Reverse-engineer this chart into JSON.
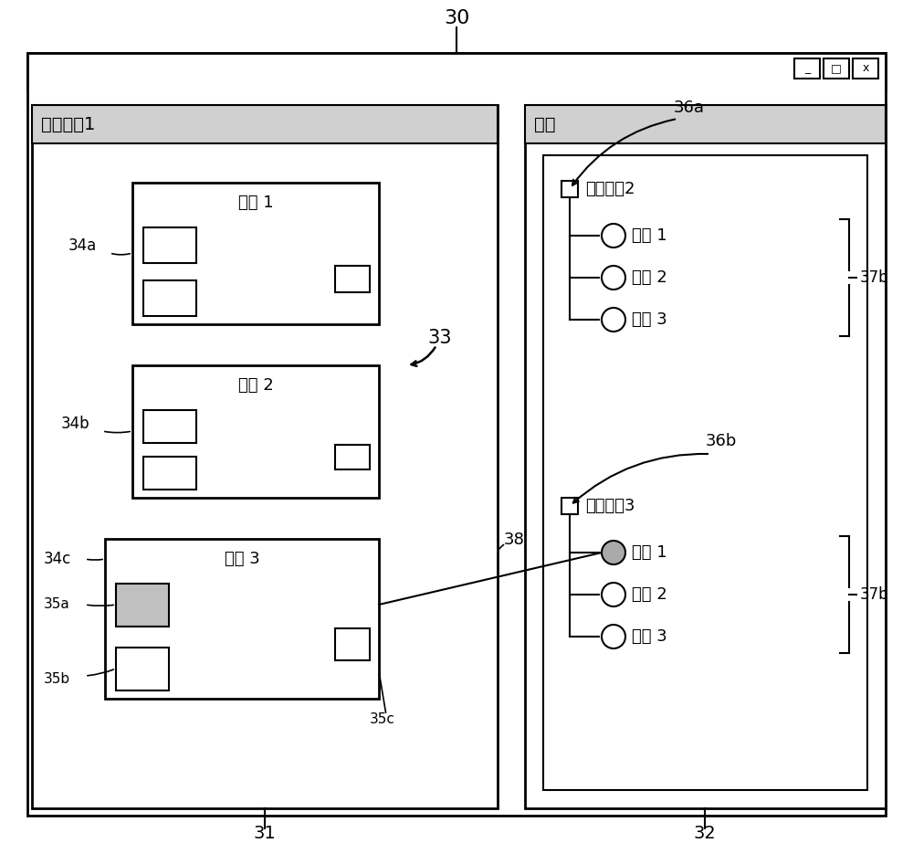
{
  "bg_color": "#ffffff",
  "title_label": "30",
  "panel31_label": "31",
  "panel32_label": "32",
  "panel31_title": "现场设备1",
  "panel32_title": "设施",
  "func1_title": "功能 1",
  "func2_title": "功能 2",
  "func3_title": "功能 3",
  "label_33": "33",
  "label_38": "38",
  "label_34a": "34a",
  "label_34b": "34b",
  "label_34c": "34c",
  "label_35a": "35a",
  "label_35b": "35b",
  "label_35c": "35c",
  "label_36a": "36a",
  "label_36b": "36b",
  "label_37b": "37b",
  "device2_label": "现场设备2",
  "device3_label": "现场设备3",
  "signals": [
    "信号 1",
    "信号 2",
    "信号 3"
  ],
  "win_btn_minus": "_",
  "win_btn_square": "□",
  "win_btn_x": "x"
}
